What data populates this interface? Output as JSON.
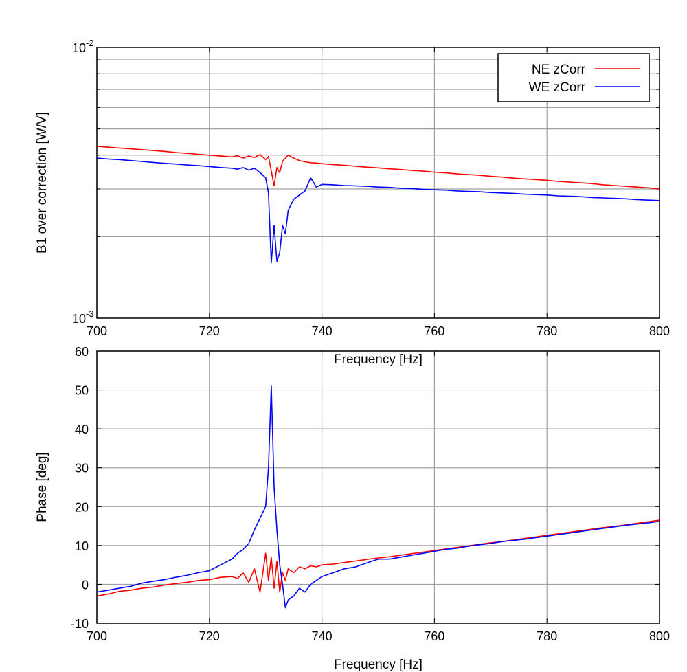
{
  "chart_data": [
    {
      "type": "line",
      "xlabel": "Frequency [Hz]",
      "ylabel": "B1 over correction [W/V]",
      "yscale": "log",
      "xlim": [
        700,
        800
      ],
      "ylim": [
        0.001,
        0.01
      ],
      "xticks": [
        "700",
        "720",
        "740",
        "760",
        "780",
        "800"
      ],
      "yticks": [
        {
          "base": "10",
          "exp": "-2"
        },
        {
          "base": "10",
          "exp": "-3"
        }
      ],
      "grid": true,
      "legend_position": "top-right",
      "x": [
        700,
        702,
        704,
        706,
        708,
        710,
        712,
        714,
        716,
        718,
        720,
        722,
        724,
        725,
        726,
        727,
        728,
        729,
        730,
        730.5,
        731,
        731.5,
        732,
        732.5,
        733,
        733.5,
        734,
        735,
        736,
        737,
        738,
        739,
        740,
        742,
        744,
        746,
        748,
        750,
        752,
        754,
        756,
        758,
        760,
        762,
        764,
        766,
        768,
        770,
        772,
        774,
        776,
        778,
        780,
        782,
        784,
        786,
        788,
        790,
        792,
        794,
        796,
        798,
        800
      ],
      "y_unit_multiplier": 0.001,
      "series": [
        {
          "name": "NE zCorr",
          "color": "#ff0000",
          "values": [
            4.31,
            4.28,
            4.25,
            4.22,
            4.19,
            4.16,
            4.13,
            4.09,
            4.06,
            4.03,
            4.0,
            3.97,
            3.94,
            3.98,
            3.9,
            3.97,
            3.92,
            4.02,
            3.85,
            3.95,
            3.5,
            3.08,
            3.6,
            3.45,
            3.8,
            3.9,
            4.0,
            3.9,
            3.82,
            3.78,
            3.75,
            3.74,
            3.72,
            3.69,
            3.67,
            3.64,
            3.61,
            3.59,
            3.56,
            3.54,
            3.51,
            3.49,
            3.46,
            3.44,
            3.41,
            3.39,
            3.37,
            3.34,
            3.32,
            3.29,
            3.27,
            3.25,
            3.23,
            3.2,
            3.18,
            3.16,
            3.14,
            3.11,
            3.09,
            3.07,
            3.05,
            3.03,
            3.0
          ]
        },
        {
          "name": "WE zCorr",
          "color": "#0000ff",
          "values": [
            3.9,
            3.87,
            3.85,
            3.82,
            3.79,
            3.76,
            3.73,
            3.71,
            3.68,
            3.66,
            3.63,
            3.6,
            3.58,
            3.55,
            3.6,
            3.52,
            3.58,
            3.45,
            3.3,
            2.9,
            1.6,
            2.2,
            1.62,
            1.75,
            2.2,
            2.05,
            2.5,
            2.75,
            2.85,
            2.95,
            3.3,
            3.05,
            3.12,
            3.11,
            3.09,
            3.08,
            3.07,
            3.05,
            3.04,
            3.02,
            3.01,
            2.99,
            2.98,
            2.97,
            2.95,
            2.94,
            2.93,
            2.91,
            2.9,
            2.89,
            2.87,
            2.86,
            2.85,
            2.83,
            2.82,
            2.81,
            2.79,
            2.78,
            2.77,
            2.76,
            2.74,
            2.73,
            2.72
          ]
        }
      ]
    },
    {
      "type": "line",
      "xlabel": "Frequency [Hz]",
      "ylabel": "Phase [deg]",
      "xlim": [
        700,
        800
      ],
      "ylim": [
        -10,
        60
      ],
      "xticks": [
        "700",
        "720",
        "740",
        "760",
        "780",
        "800"
      ],
      "yticks": [
        "-10",
        "0",
        "10",
        "20",
        "30",
        "40",
        "50",
        "60"
      ],
      "grid": true,
      "x": [
        700,
        702,
        704,
        706,
        708,
        710,
        712,
        714,
        716,
        718,
        720,
        722,
        724,
        725,
        726,
        727,
        728,
        729,
        730,
        730.5,
        731,
        731.5,
        732,
        732.5,
        733,
        733.5,
        734,
        735,
        736,
        737,
        738,
        739,
        740,
        742,
        744,
        746,
        748,
        750,
        752,
        754,
        756,
        758,
        760,
        762,
        764,
        766,
        768,
        770,
        772,
        774,
        776,
        778,
        780,
        782,
        784,
        786,
        788,
        790,
        792,
        794,
        796,
        798,
        800
      ],
      "series": [
        {
          "name": "NE zCorr",
          "color": "#ff0000",
          "values": [
            -3,
            -2.5,
            -1.8,
            -1.5,
            -1,
            -0.7,
            -0.2,
            0.2,
            0.5,
            1,
            1.2,
            1.8,
            2.0,
            1.5,
            3,
            0.5,
            4,
            -2,
            8,
            1,
            7,
            -1,
            6,
            -2,
            3,
            1,
            4,
            3,
            4.5,
            4,
            4.8,
            4.5,
            5,
            5.2,
            5.6,
            6,
            6.4,
            6.8,
            7.1,
            7.5,
            7.9,
            8.3,
            8.7,
            9.1,
            9.5,
            9.9,
            10.3,
            10.7,
            11.0,
            11.4,
            11.8,
            12.2,
            12.6,
            13.0,
            13.4,
            13.8,
            14.2,
            14.6,
            14.9,
            15.3,
            15.7,
            16.1,
            16.5
          ]
        },
        {
          "name": "WE zCorr",
          "color": "#0000ff",
          "values": [
            -2,
            -1.5,
            -1,
            -0.5,
            0.3,
            0.8,
            1.2,
            1.8,
            2.3,
            3,
            3.5,
            5,
            6.5,
            8,
            9,
            10.5,
            14,
            17,
            20,
            30,
            51,
            25,
            14,
            5,
            0,
            -6,
            -4,
            -3,
            -1,
            -2,
            0,
            1,
            2,
            3,
            4,
            4.5,
            5.5,
            6.5,
            6.5,
            7,
            7.5,
            8,
            8.5,
            9,
            9.3,
            9.8,
            10.2,
            10.5,
            11,
            11.3,
            11.6,
            12,
            12.4,
            12.8,
            13.2,
            13.6,
            14,
            14.4,
            14.8,
            15.2,
            15.5,
            15.8,
            16.2
          ]
        }
      ]
    }
  ]
}
